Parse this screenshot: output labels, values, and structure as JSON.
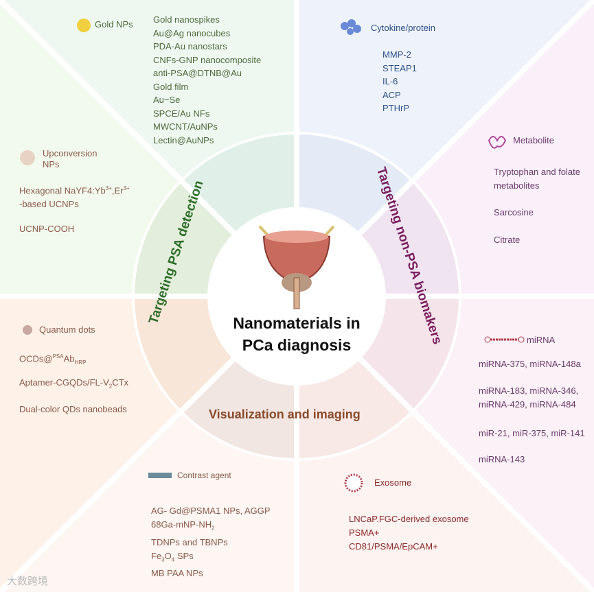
{
  "center_title": [
    "Nanomaterials in",
    "PCa diagnosis"
  ],
  "ring_labels": {
    "psa": "Targeting PSA detection",
    "non_psa": "Targeting non-PSA biomakers",
    "imaging": "Visualization and imaging"
  },
  "gold": {
    "title": "Gold NPs",
    "items": [
      "Gold nanospikes",
      "Au@Ag nanocubes",
      "PDA-Au nanostars",
      "CNFs-GNP nanocomposite",
      "anti-PSA@DTNB@Au",
      "Gold film",
      "Au−Se",
      "SPCE/Au NFs",
      "MWCNT/AuNPs",
      "Lectin@AuNPs"
    ]
  },
  "ucnp": {
    "title": [
      "Upconversion",
      "NPs"
    ],
    "items": [
      "Hexagonal NaYF4:Yb3+,Er3+ -based UCNPs",
      "UCNP-COOH"
    ]
  },
  "qd": {
    "title": "Quantum dots",
    "items": [
      "OCDs@PSAAbHRP",
      "Aptamer-CGQDs/FL-V2CTx",
      "Dual-color QDs nanobeads"
    ]
  },
  "contrast": {
    "title": "Contrast agent",
    "items": [
      "AG- Gd@PSMA1 NPs, AGGP",
      "68Ga-mNP-NH2",
      "TDNPs and TBNPs",
      "Fe3O4 SPs",
      "MB PAA NPs"
    ]
  },
  "exosome": {
    "title": "Exosome",
    "items": [
      "LNCaP.FGC-derived exosome",
      "PSMA+",
      "CD81/PSMA/EpCAM+"
    ]
  },
  "mirna": {
    "title": "miRNA",
    "items": [
      "miRNA-375, miRNA-148a",
      "miRNA-183, miRNA-346,",
      "miRNA-429, miRNA-484",
      "miR-21, miR-375, miR-141",
      "miRNA-143"
    ]
  },
  "metabolite": {
    "title": "Metabolite",
    "items": [
      "Tryptophan and folate",
      "metabolites",
      "Sarcosine",
      "Citrate"
    ]
  },
  "cytokine": {
    "title": "Cytokine/protein",
    "items": [
      "MMP-2",
      "STEAP1",
      "IL-6",
      "ACP",
      "PTHrP"
    ]
  },
  "watermark": "大数跨境"
}
